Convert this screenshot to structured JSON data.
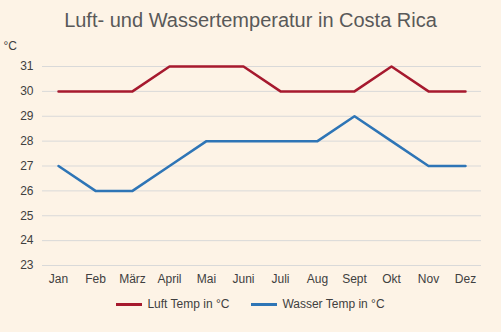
{
  "chart_data": {
    "type": "line",
    "title": "Luft- und Wassertemperatur in Costa Rica",
    "y_label": "°C",
    "categories": [
      "Jan",
      "Feb",
      "März",
      "April",
      "Mai",
      "Juni",
      "Juli",
      "Aug",
      "Sept",
      "Okt",
      "Nov",
      "Dez"
    ],
    "series": [
      {
        "name": "Luft Temp in °C",
        "color": "#a6192e",
        "values": [
          30,
          30,
          30,
          31,
          31,
          31,
          30,
          30,
          30,
          31,
          30,
          30
        ]
      },
      {
        "name": "Wasser Temp in °C",
        "color": "#2e75b6",
        "values": [
          27,
          26,
          26,
          27,
          28,
          28,
          28,
          28,
          29,
          28,
          27,
          27
        ]
      }
    ],
    "ylim": [
      23,
      31
    ],
    "yticks": [
      23,
      24,
      25,
      26,
      27,
      28,
      29,
      30,
      31
    ],
    "grid": true,
    "legend": "bottom"
  }
}
